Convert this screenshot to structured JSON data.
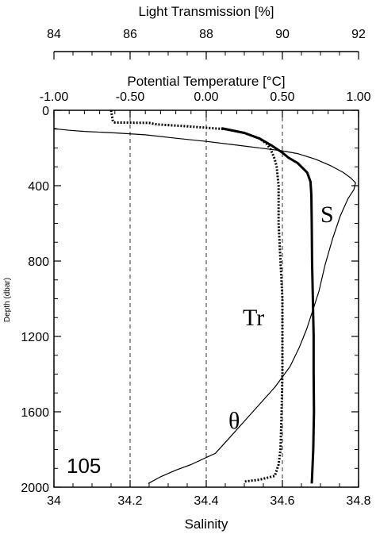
{
  "chart_data": {
    "type": "line",
    "station": "105",
    "axes": {
      "salinity": {
        "label": "Salinity",
        "range": [
          34.0,
          34.8
        ],
        "ticks": [
          "34",
          "34.2",
          "34.4",
          "34.6",
          "34.8"
        ],
        "tick_values": [
          34.0,
          34.2,
          34.4,
          34.6,
          34.8
        ]
      },
      "potential_temperature": {
        "label": "Potential Temperature [°C]",
        "range": [
          -1.0,
          1.0
        ],
        "ticks": [
          "-1.00",
          "-0.50",
          "0.00",
          "0.50",
          "1.00"
        ],
        "tick_values": [
          -1.0,
          -0.5,
          0.0,
          0.5,
          1.0
        ]
      },
      "light_transmission": {
        "label": "Light Transmission [%]",
        "range": [
          84,
          92
        ],
        "ticks": [
          "84",
          "86",
          "88",
          "90",
          "92"
        ],
        "tick_values": [
          84,
          86,
          88,
          90,
          92
        ]
      },
      "depth": {
        "label": "Depth (dbar)",
        "range": [
          0,
          2000
        ],
        "inverted": true,
        "ticks": [
          "0",
          "400",
          "800",
          "1200",
          "1600",
          "2000"
        ],
        "tick_values": [
          0,
          400,
          800,
          1200,
          1600,
          2000
        ]
      }
    },
    "grid": "dashed vertical lines at interior salinity ticks",
    "series": [
      {
        "name": "S",
        "axis": "salinity",
        "style": "thick-solid",
        "points": [
          [
            34.44,
            95
          ],
          [
            34.5,
            120
          ],
          [
            34.54,
            150
          ],
          [
            34.57,
            185
          ],
          [
            34.6,
            225
          ],
          [
            34.615,
            250
          ],
          [
            34.64,
            280
          ],
          [
            34.665,
            330
          ],
          [
            34.674,
            380
          ],
          [
            34.676,
            450
          ],
          [
            34.677,
            600
          ],
          [
            34.678,
            800
          ],
          [
            34.68,
            1000
          ],
          [
            34.682,
            1200
          ],
          [
            34.682,
            1400
          ],
          [
            34.683,
            1600
          ],
          [
            34.681,
            1800
          ],
          [
            34.678,
            1950
          ],
          [
            34.677,
            1980
          ]
        ]
      },
      {
        "name": "θ",
        "axis": "potential_temperature",
        "style": "thin-solid",
        "points": [
          [
            -1.0,
            95
          ],
          [
            -0.97,
            100
          ],
          [
            -0.9,
            106
          ],
          [
            -0.8,
            112
          ],
          [
            -0.6,
            120
          ],
          [
            -0.4,
            130
          ],
          [
            -0.2,
            148
          ],
          [
            0.0,
            165
          ],
          [
            0.2,
            185
          ],
          [
            0.4,
            205
          ],
          [
            0.5,
            215
          ],
          [
            0.6,
            230
          ],
          [
            0.72,
            260
          ],
          [
            0.82,
            295
          ],
          [
            0.9,
            330
          ],
          [
            0.95,
            360
          ],
          [
            0.98,
            385
          ],
          [
            0.97,
            420
          ],
          [
            0.93,
            470
          ],
          [
            0.88,
            560
          ],
          [
            0.83,
            680
          ],
          [
            0.78,
            820
          ],
          [
            0.74,
            960
          ],
          [
            0.7,
            1060
          ],
          [
            0.66,
            1160
          ],
          [
            0.61,
            1260
          ],
          [
            0.55,
            1360
          ],
          [
            0.45,
            1470
          ],
          [
            0.35,
            1560
          ],
          [
            0.25,
            1650
          ],
          [
            0.15,
            1740
          ],
          [
            0.06,
            1820
          ],
          [
            -0.1,
            1880
          ],
          [
            -0.2,
            1910
          ],
          [
            -0.3,
            1945
          ],
          [
            -0.38,
            1980
          ]
        ]
      },
      {
        "name": "Tr",
        "axis": "light_transmission",
        "style": "dotted",
        "points": [
          [
            85.5,
            0
          ],
          [
            85.55,
            60
          ],
          [
            85.6,
            65
          ],
          [
            86.5,
            67
          ],
          [
            86.7,
            75
          ],
          [
            87.5,
            85
          ],
          [
            88.5,
            100
          ],
          [
            89.0,
            120
          ],
          [
            89.4,
            150
          ],
          [
            89.6,
            180
          ],
          [
            89.7,
            210
          ],
          [
            89.8,
            260
          ],
          [
            89.85,
            300
          ],
          [
            89.9,
            400
          ],
          [
            89.9,
            600
          ],
          [
            89.95,
            800
          ],
          [
            90.0,
            1000
          ],
          [
            90.0,
            1200
          ],
          [
            90.0,
            1400
          ],
          [
            89.98,
            1600
          ],
          [
            89.95,
            1800
          ],
          [
            89.9,
            1880
          ],
          [
            89.8,
            1940
          ],
          [
            89.4,
            1960
          ],
          [
            89.0,
            1970
          ]
        ]
      }
    ],
    "annotations": [
      {
        "text": "S",
        "near": "salinity curve, upper right"
      },
      {
        "text": "Tr",
        "near": "light transmission curve"
      },
      {
        "text": "θ",
        "near": "potential temperature curve, lower"
      }
    ]
  }
}
